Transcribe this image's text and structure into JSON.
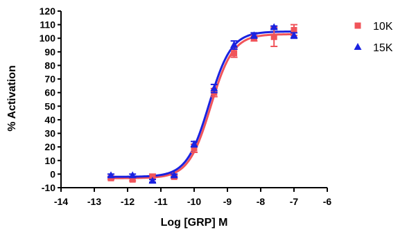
{
  "chart_data": {
    "type": "scatter",
    "title": "",
    "xlabel": "Log [GRP] M",
    "ylabel": "% Activation",
    "xlim": [
      -14,
      -6
    ],
    "ylim": [
      -10,
      120
    ],
    "x_ticks": [
      "-14",
      "-13",
      "-12",
      "-11",
      "-10",
      "-9",
      "-8",
      "-7",
      "-6"
    ],
    "y_ticks": [
      "-10",
      "0",
      "10",
      "20",
      "30",
      "40",
      "50",
      "60",
      "70",
      "80",
      "90",
      "100",
      "110",
      "120"
    ],
    "legend_position": "top-right",
    "grid": false,
    "series": [
      {
        "name": "10K",
        "marker": "square",
        "color": "#f0545a",
        "x": [
          -12.5,
          -11.85,
          -11.25,
          -10.6,
          -10.0,
          -9.4,
          -8.8,
          -8.2,
          -7.6,
          -7.0
        ],
        "y": [
          -3,
          -4,
          -2,
          -2,
          19,
          60,
          89,
          100,
          101,
          106
        ],
        "err": [
          1,
          1,
          2,
          1,
          3,
          3,
          3,
          2,
          7,
          4
        ],
        "fit": {
          "bottom": -3,
          "top": 103,
          "log_ec50": -9.5,
          "hill": 1.3
        }
      },
      {
        "name": "15K",
        "marker": "triangle",
        "color": "#1a22e0",
        "x": [
          -12.5,
          -11.85,
          -11.25,
          -10.6,
          -10.0,
          -9.4,
          -8.8,
          -8.2,
          -7.6,
          -7.0
        ],
        "y": [
          -1,
          -1,
          -5,
          -1,
          22,
          63,
          95,
          102,
          108,
          102
        ],
        "err": [
          1,
          1,
          1,
          1,
          2,
          3,
          3,
          2,
          1,
          2
        ],
        "fit": {
          "bottom": -2,
          "top": 105,
          "log_ec50": -9.55,
          "hill": 1.3
        }
      }
    ]
  }
}
